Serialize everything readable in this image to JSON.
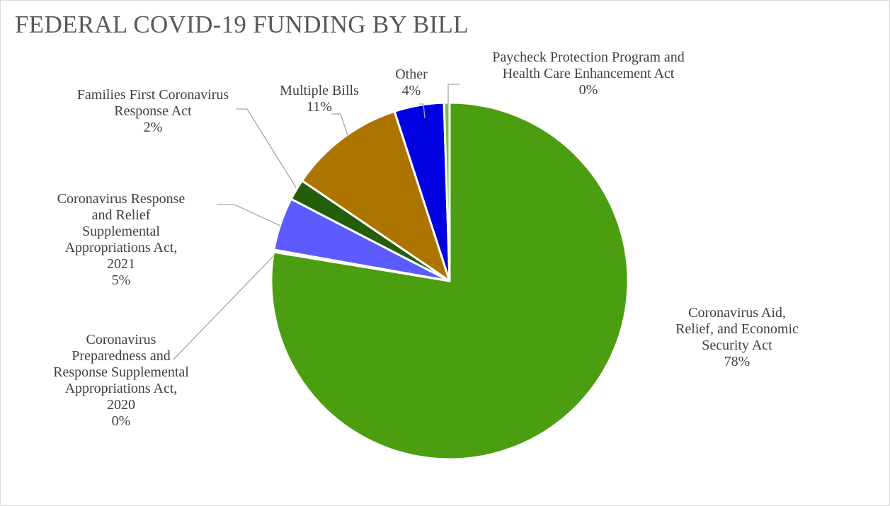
{
  "chart_data": {
    "type": "pie",
    "title": "FEDERAL COVID-19 FUNDING BY BILL",
    "start_angle_deg": 0,
    "direction": "clockwise",
    "slices": [
      {
        "name": "Coronavirus Aid, Relief, and Economic Security Act",
        "label_name": "Coronavirus Aid,\nRelief, and Economic\nSecurity Act",
        "percent": 78,
        "label": "78%",
        "value": 0.776,
        "color": "#4a9e0f"
      },
      {
        "name": "Coronavirus Preparedness and Response Supplemental Appropriations Act, 2020",
        "label_name": "Coronavirus\nPreparedness and\nResponse Supplemental\nAppropriations Act,\n2020",
        "percent": 0,
        "label": "0%",
        "value": 0.002,
        "color": "#6ab42f"
      },
      {
        "name": "Coronavirus Response and Relief Supplemental Appropriations Act, 2021",
        "label_name": "Coronavirus Response\nand Relief\nSupplemental\nAppropriations Act,\n2021",
        "percent": 5,
        "label": "5%",
        "value": 0.048,
        "color": "#5b5bff"
      },
      {
        "name": "Families First Coronavirus Response Act",
        "label_name": "Families First Coronavirus\nResponse Act",
        "percent": 2,
        "label": "2%",
        "value": 0.019,
        "color": "#255e0a"
      },
      {
        "name": "Multiple Bills",
        "label_name": "Multiple Bills",
        "percent": 11,
        "label": "11%",
        "value": 0.105,
        "color": "#ad7400"
      },
      {
        "name": "Other",
        "label_name": "Other",
        "percent": 4,
        "label": "4%",
        "value": 0.045,
        "color": "#0000e0"
      },
      {
        "name": "Paycheck Protection Program and Health Care Enhancement Act",
        "label_name": "Paycheck Protection Program and\nHealth Care Enhancement Act",
        "percent": 0,
        "label": "0%",
        "value": 0.005,
        "color": "#7bc043"
      }
    ],
    "legend": "none",
    "data_labels": "category name and percentage, outside with leader lines"
  }
}
